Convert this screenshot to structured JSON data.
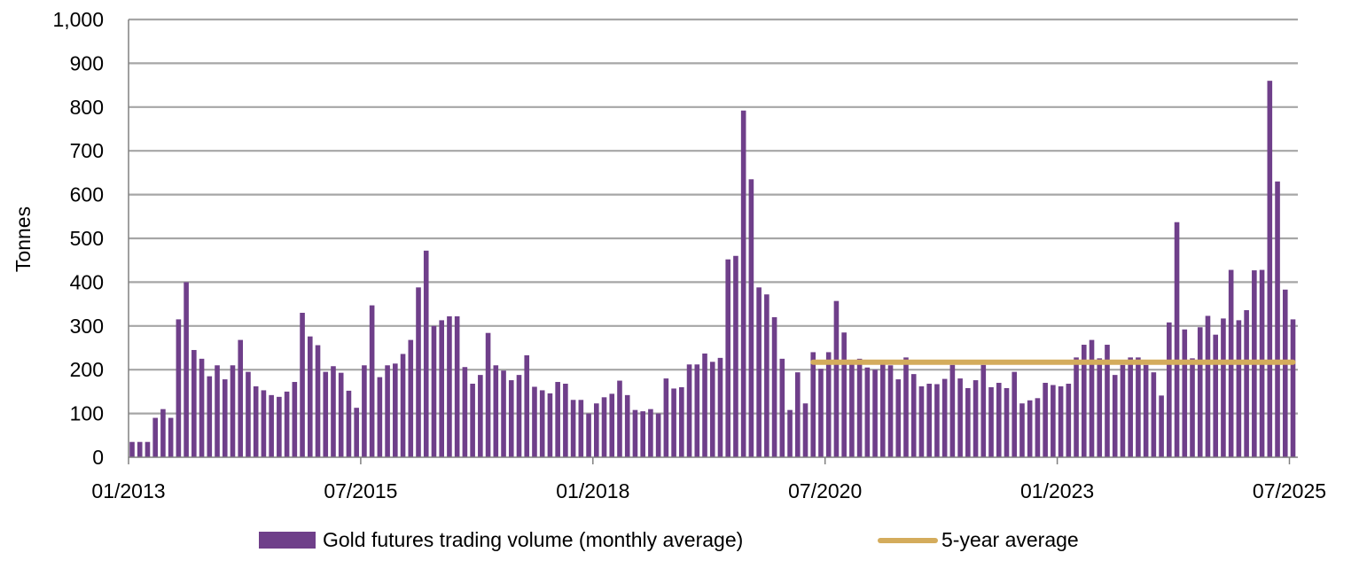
{
  "chart_data": {
    "type": "bar",
    "ylabel": "Tonnes",
    "xlabel": "",
    "ylim": [
      0,
      1000
    ],
    "yticks": [
      "0",
      "100",
      "200",
      "300",
      "400",
      "500",
      "600",
      "700",
      "800",
      "900",
      "1,000"
    ],
    "xtick_labels": [
      "01/2013",
      "07/2015",
      "01/2018",
      "07/2020",
      "01/2023",
      "07/2025"
    ],
    "grid": true,
    "legend_position": "bottom",
    "colors": {
      "bars": "#6f3f8a",
      "average_line": "#d4ac5c",
      "grid": "#a6a6a6"
    },
    "start_month": "01/2013",
    "series": [
      {
        "name": "Gold futures trading volume (monthly average)",
        "type": "bar",
        "values": [
          35,
          35,
          35,
          90,
          110,
          90,
          315,
          400,
          245,
          225,
          185,
          210,
          178,
          210,
          268,
          195,
          162,
          153,
          142,
          138,
          150,
          172,
          330,
          276,
          256,
          195,
          208,
          193,
          152,
          113,
          210,
          347,
          183,
          210,
          214,
          236,
          268,
          388,
          472,
          300,
          313,
          322,
          322,
          206,
          168,
          188,
          284,
          210,
          198,
          176,
          188,
          233,
          161,
          153,
          146,
          172,
          168,
          131,
          131,
          100,
          123,
          137,
          145,
          175,
          142,
          108,
          105,
          110,
          100,
          180,
          157,
          160,
          212,
          212,
          237,
          218,
          227,
          452,
          460,
          792,
          635,
          388,
          372,
          320,
          225,
          108,
          194,
          123,
          240,
          202,
          240,
          357,
          285,
          215,
          225,
          205,
          200,
          214,
          210,
          178,
          228,
          190,
          162,
          168,
          167,
          179,
          211,
          180,
          158,
          176,
          211,
          160,
          170,
          158,
          195,
          123,
          130,
          135,
          170,
          165,
          162,
          168,
          228,
          257,
          268,
          226,
          257,
          188,
          211,
          228,
          228,
          211,
          194,
          141,
          308,
          537,
          292,
          226,
          297,
          323,
          280,
          317,
          428,
          313,
          336,
          427,
          428,
          860,
          630,
          383,
          315
        ]
      },
      {
        "name": "5-year average",
        "type": "line",
        "value": 217,
        "start_month": "05/2020",
        "end_month": "07/2025"
      }
    ]
  }
}
